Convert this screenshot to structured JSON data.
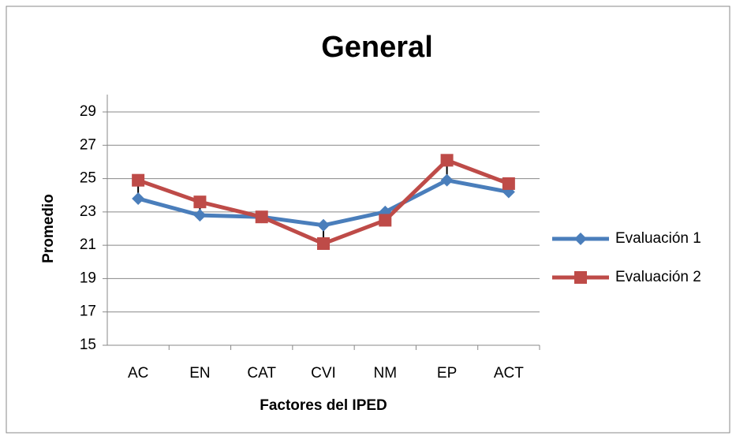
{
  "chart_data": {
    "type": "line",
    "title": "General",
    "x_label": "Factores del IPED",
    "y_label": "Promedio",
    "categories": [
      "AC",
      "EN",
      "CAT",
      "CVI",
      "NM",
      "EP",
      "ACT"
    ],
    "series": [
      {
        "name": "Evaluación 1",
        "color": "#4a7ebb",
        "marker": "diamond",
        "values": [
          23.8,
          22.8,
          22.7,
          22.2,
          23.0,
          24.9,
          24.2
        ]
      },
      {
        "name": "Evaluación 2",
        "color": "#be4b48",
        "marker": "square",
        "values": [
          24.9,
          23.6,
          22.7,
          21.1,
          22.5,
          26.1,
          24.7
        ]
      }
    ],
    "ylim": [
      15,
      29
    ],
    "yticks": [
      15,
      17,
      19,
      21,
      23,
      25,
      27,
      29
    ],
    "grid": true,
    "hi_lo_lines": true,
    "legend": "right"
  }
}
